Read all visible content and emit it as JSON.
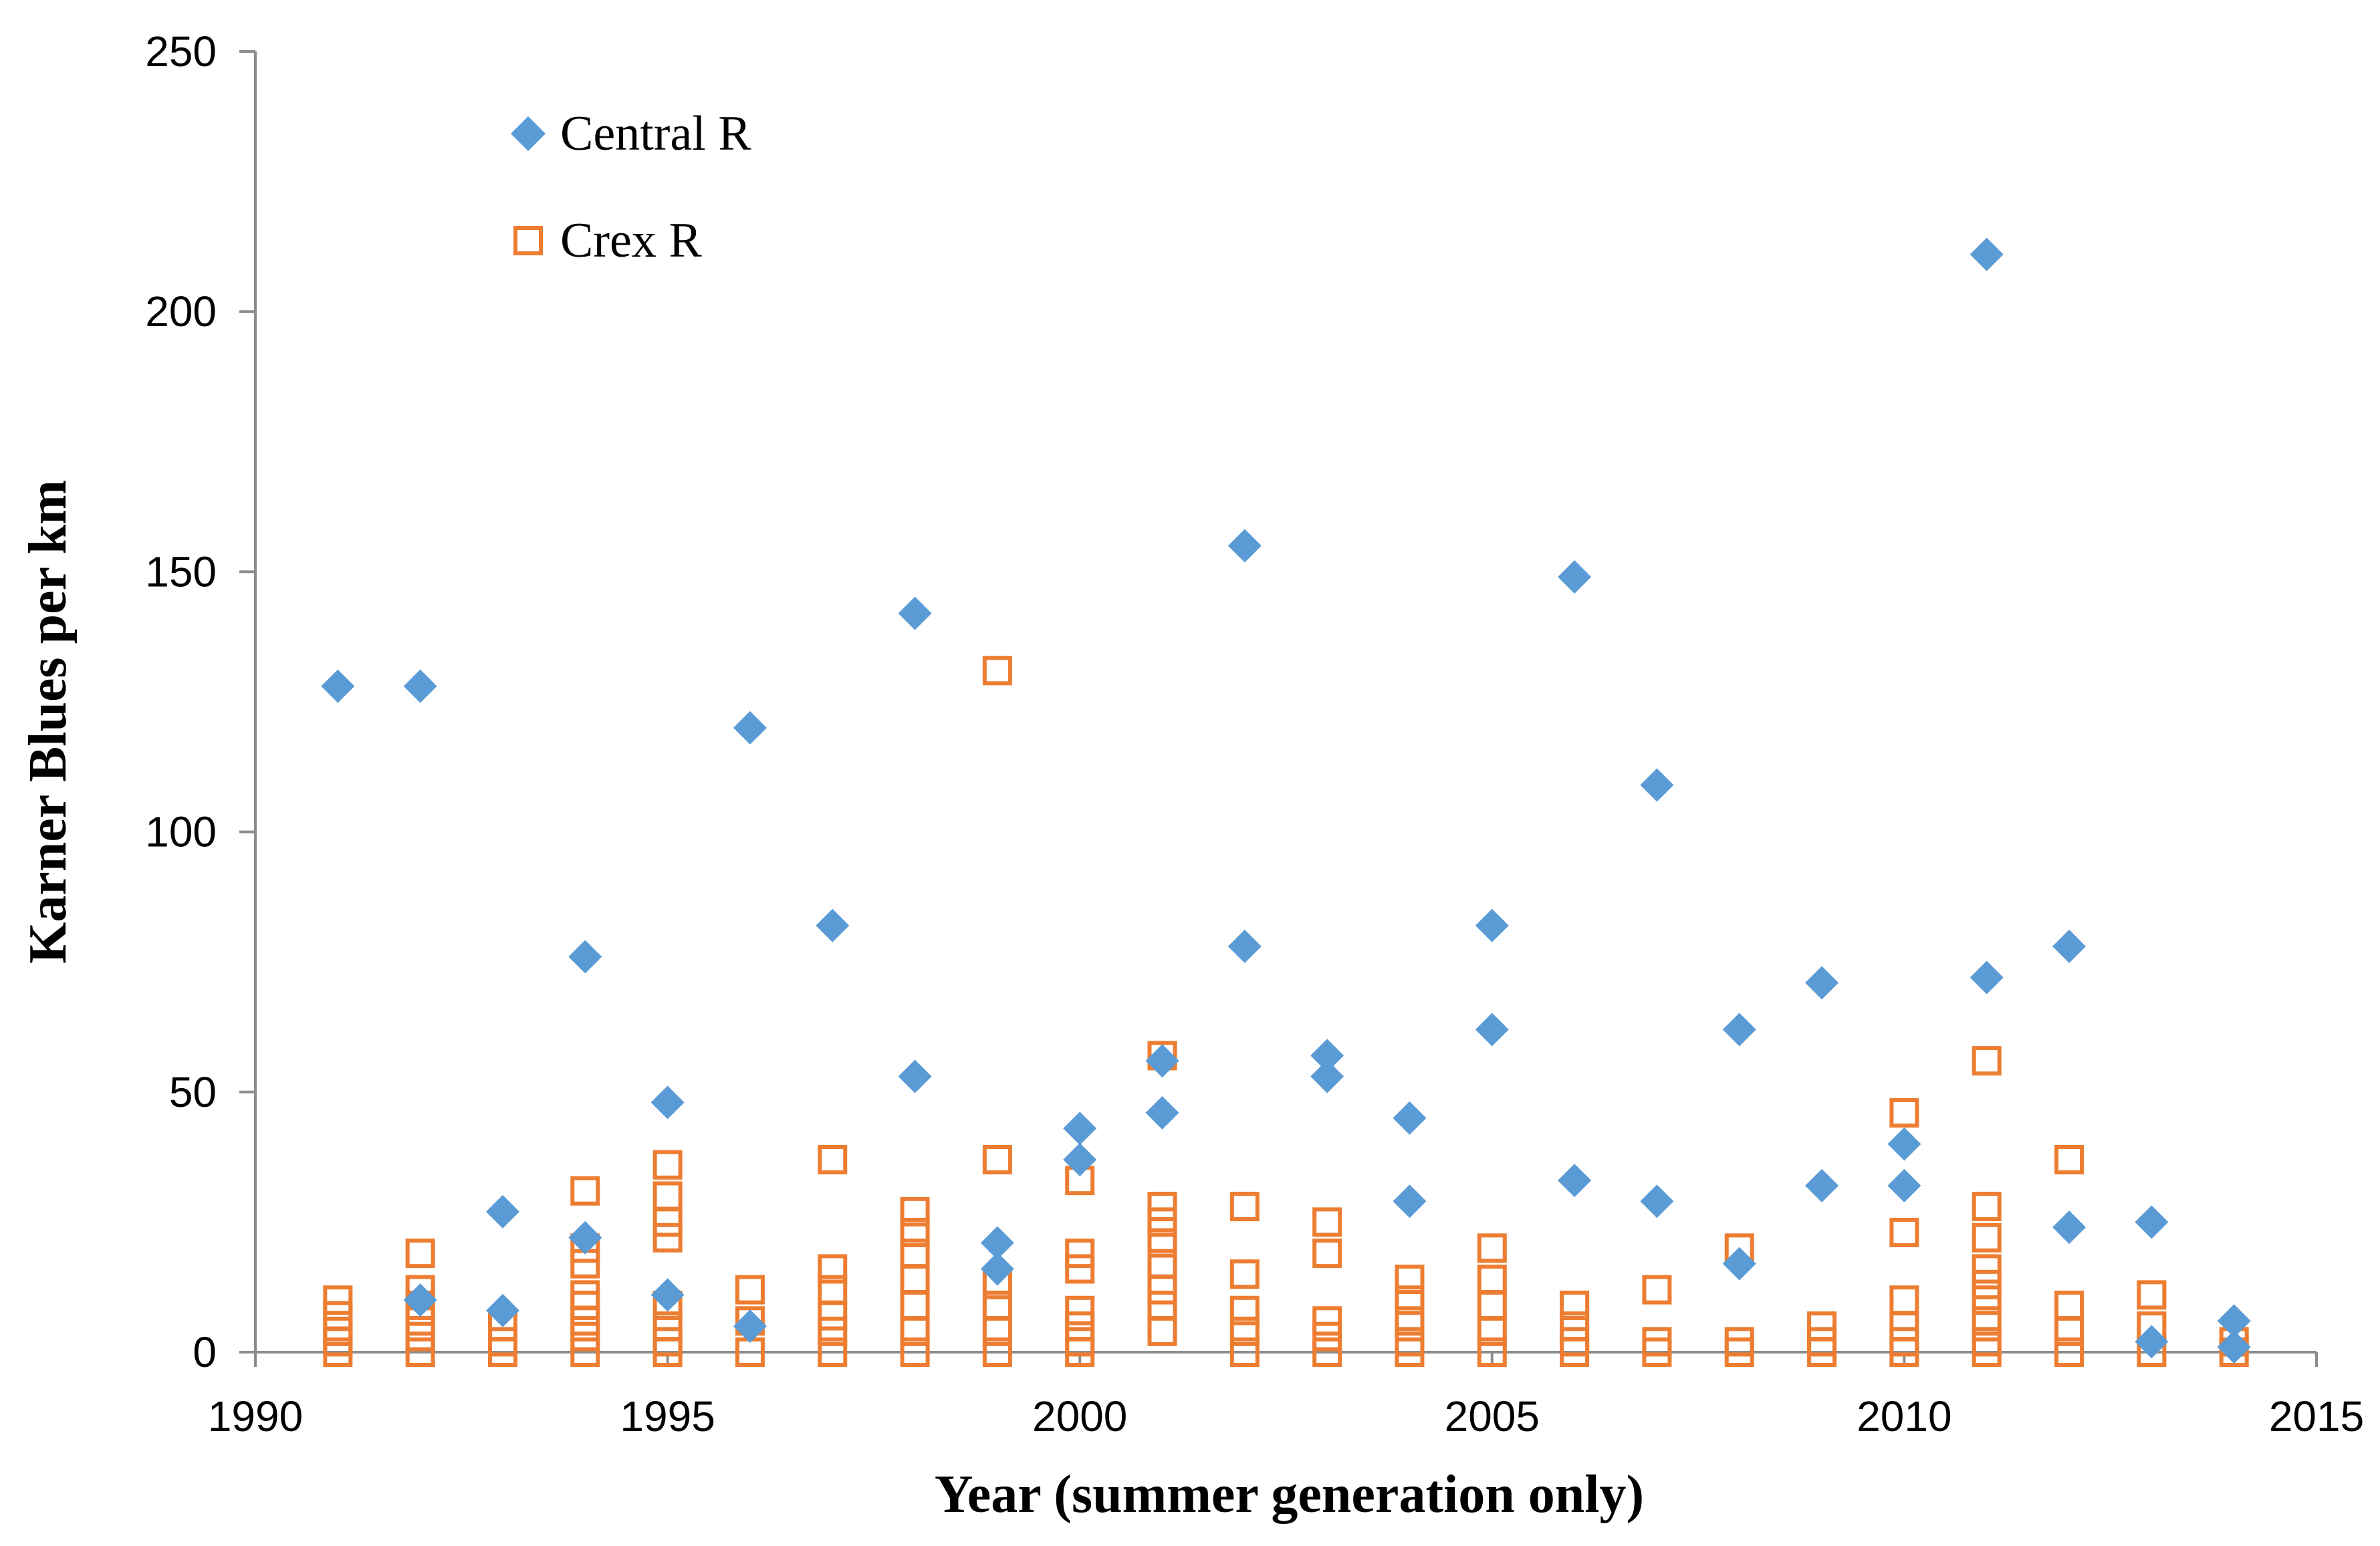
{
  "chart_data": {
    "type": "scatter",
    "title": "",
    "xlabel": "Year (summer generation only)",
    "ylabel": "Karner Blues per km",
    "xlim": [
      1990,
      2015
    ],
    "ylim": [
      0,
      250
    ],
    "x_ticks": [
      "1990",
      "1995",
      "2000",
      "2005",
      "2010",
      "2015"
    ],
    "y_ticks": [
      "0",
      "50",
      "100",
      "150",
      "200",
      "250"
    ],
    "legend_position": "top-left",
    "grid": false,
    "series": [
      {
        "name": "Central R",
        "marker": "filled-diamond",
        "color": "#5B9BD5",
        "points": [
          [
            1991,
            128
          ],
          [
            1992,
            128
          ],
          [
            1992,
            10
          ],
          [
            1993,
            27
          ],
          [
            1993,
            8
          ],
          [
            1994,
            76
          ],
          [
            1994,
            22
          ],
          [
            1995,
            48
          ],
          [
            1995,
            11
          ],
          [
            1996,
            120
          ],
          [
            1996,
            5
          ],
          [
            1997,
            82
          ],
          [
            1998,
            142
          ],
          [
            1998,
            53
          ],
          [
            1999,
            21
          ],
          [
            1999,
            16
          ],
          [
            2000,
            43
          ],
          [
            2000,
            37
          ],
          [
            2001,
            56
          ],
          [
            2001,
            46
          ],
          [
            2002,
            155
          ],
          [
            2002,
            78
          ],
          [
            2003,
            57
          ],
          [
            2003,
            53
          ],
          [
            2004,
            45
          ],
          [
            2004,
            29
          ],
          [
            2005,
            82
          ],
          [
            2005,
            62
          ],
          [
            2006,
            149
          ],
          [
            2006,
            33
          ],
          [
            2007,
            109
          ],
          [
            2007,
            29
          ],
          [
            2008,
            62
          ],
          [
            2008,
            17
          ],
          [
            2009,
            71
          ],
          [
            2009,
            32
          ],
          [
            2010,
            40
          ],
          [
            2010,
            32
          ],
          [
            2011,
            211
          ],
          [
            2011,
            72
          ],
          [
            2012,
            78
          ],
          [
            2012,
            24
          ],
          [
            2013,
            25
          ],
          [
            2013,
            2
          ],
          [
            2014,
            6
          ],
          [
            2014,
            1
          ]
        ]
      },
      {
        "name": "Crex R",
        "marker": "open-square",
        "color": "#ED7D31",
        "points": [
          [
            1991,
            10
          ],
          [
            1991,
            7
          ],
          [
            1991,
            4
          ],
          [
            1991,
            2
          ],
          [
            1991,
            0
          ],
          [
            1992,
            19
          ],
          [
            1992,
            12
          ],
          [
            1992,
            9
          ],
          [
            1992,
            6
          ],
          [
            1992,
            3
          ],
          [
            1992,
            0
          ],
          [
            1993,
            5
          ],
          [
            1993,
            2
          ],
          [
            1993,
            0
          ],
          [
            1994,
            31
          ],
          [
            1994,
            20
          ],
          [
            1994,
            17
          ],
          [
            1994,
            11
          ],
          [
            1994,
            9
          ],
          [
            1994,
            6
          ],
          [
            1994,
            3
          ],
          [
            1994,
            0
          ],
          [
            1995,
            36
          ],
          [
            1995,
            30
          ],
          [
            1995,
            25
          ],
          [
            1995,
            22
          ],
          [
            1995,
            9
          ],
          [
            1995,
            5
          ],
          [
            1995,
            2
          ],
          [
            1995,
            0
          ],
          [
            1996,
            12
          ],
          [
            1996,
            6
          ],
          [
            1996,
            0
          ],
          [
            1997,
            37
          ],
          [
            1997,
            16
          ],
          [
            1997,
            12
          ],
          [
            1997,
            7
          ],
          [
            1997,
            4
          ],
          [
            1997,
            0
          ],
          [
            1998,
            27
          ],
          [
            1998,
            23
          ],
          [
            1998,
            19
          ],
          [
            1998,
            14
          ],
          [
            1998,
            9
          ],
          [
            1998,
            4
          ],
          [
            1998,
            0
          ],
          [
            1999,
            131
          ],
          [
            1999,
            37
          ],
          [
            1999,
            13
          ],
          [
            1999,
            9
          ],
          [
            1999,
            4
          ],
          [
            1999,
            0
          ],
          [
            2000,
            33
          ],
          [
            2000,
            19
          ],
          [
            2000,
            16
          ],
          [
            2000,
            8
          ],
          [
            2000,
            5
          ],
          [
            2000,
            2
          ],
          [
            2000,
            0
          ],
          [
            2001,
            57
          ],
          [
            2001,
            28
          ],
          [
            2001,
            25
          ],
          [
            2001,
            21
          ],
          [
            2001,
            17
          ],
          [
            2001,
            12
          ],
          [
            2001,
            9
          ],
          [
            2001,
            4
          ],
          [
            2002,
            28
          ],
          [
            2002,
            15
          ],
          [
            2002,
            8
          ],
          [
            2002,
            4
          ],
          [
            2002,
            0
          ],
          [
            2003,
            25
          ],
          [
            2003,
            19
          ],
          [
            2003,
            6
          ],
          [
            2003,
            3
          ],
          [
            2003,
            0
          ],
          [
            2004,
            14
          ],
          [
            2004,
            10
          ],
          [
            2004,
            6
          ],
          [
            2004,
            2
          ],
          [
            2004,
            0
          ],
          [
            2005,
            20
          ],
          [
            2005,
            14
          ],
          [
            2005,
            9
          ],
          [
            2005,
            4
          ],
          [
            2005,
            0
          ],
          [
            2006,
            9
          ],
          [
            2006,
            5
          ],
          [
            2006,
            2
          ],
          [
            2006,
            0
          ],
          [
            2007,
            12
          ],
          [
            2007,
            2
          ],
          [
            2007,
            0
          ],
          [
            2008,
            20
          ],
          [
            2008,
            2
          ],
          [
            2008,
            0
          ],
          [
            2009,
            5
          ],
          [
            2009,
            2
          ],
          [
            2009,
            0
          ],
          [
            2010,
            46
          ],
          [
            2010,
            23
          ],
          [
            2010,
            10
          ],
          [
            2010,
            5
          ],
          [
            2010,
            2
          ],
          [
            2010,
            0
          ],
          [
            2011,
            56
          ],
          [
            2011,
            28
          ],
          [
            2011,
            22
          ],
          [
            2011,
            16
          ],
          [
            2011,
            13
          ],
          [
            2011,
            10
          ],
          [
            2011,
            6
          ],
          [
            2011,
            2
          ],
          [
            2011,
            0
          ],
          [
            2012,
            37
          ],
          [
            2012,
            9
          ],
          [
            2012,
            4
          ],
          [
            2012,
            0
          ],
          [
            2013,
            11
          ],
          [
            2013,
            5
          ],
          [
            2013,
            0
          ],
          [
            2014,
            2
          ],
          [
            2014,
            0
          ]
        ]
      }
    ]
  }
}
